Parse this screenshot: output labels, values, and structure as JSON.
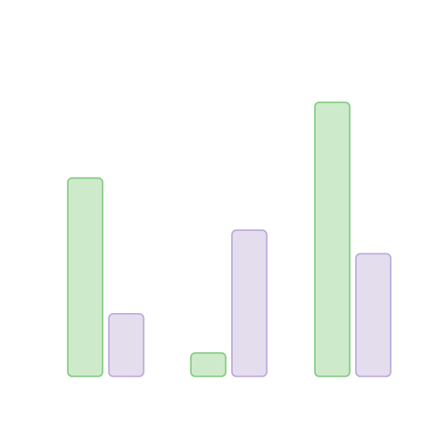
{
  "chart_data": {
    "type": "bar",
    "categories": [
      "",
      "",
      ""
    ],
    "series": [
      {
        "values": [
          76,
          9,
          105
        ]
      },
      {
        "values": [
          24,
          56,
          47
        ]
      }
    ],
    "ylim": [
      0,
      110
    ],
    "grid": false,
    "legend": "none",
    "title": "",
    "xlabel": "",
    "ylabel": "",
    "colors": {
      "series_fill": [
        "#cdeacb",
        "#e4dded"
      ],
      "series_stroke": [
        "#7fca7b",
        "#b9a6d8"
      ]
    }
  }
}
